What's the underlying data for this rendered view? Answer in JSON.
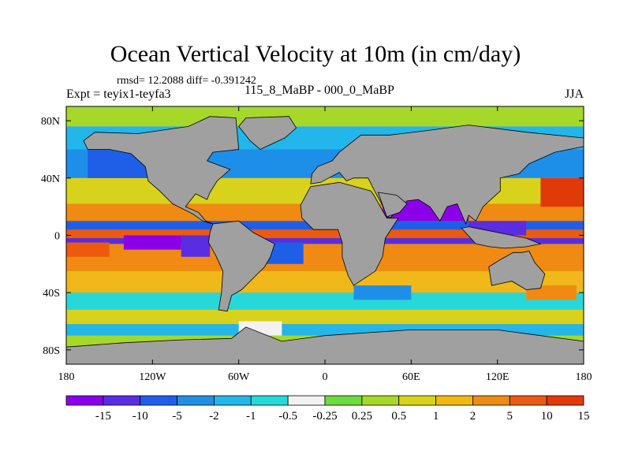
{
  "title": "Ocean Vertical Velocity at 10m (in cm/day)",
  "stats": "rmsd= 12.2088 diff= -0.391242",
  "expt": "Expt = teyix1-teyfa3",
  "subtitle": "115_8_MaBP - 000_0_MaBP",
  "season": "JJA",
  "chart_data": {
    "type": "heatmap",
    "title": "Ocean Vertical Velocity at 10m (in cm/day)",
    "x_range": [
      -180,
      180
    ],
    "y_range": [
      -90,
      90
    ],
    "x_ticks": [
      {
        "value": -180,
        "label": "180"
      },
      {
        "value": -120,
        "label": "120W"
      },
      {
        "value": -60,
        "label": "60W"
      },
      {
        "value": 0,
        "label": "0"
      },
      {
        "value": 60,
        "label": "60E"
      },
      {
        "value": 120,
        "label": "120E"
      },
      {
        "value": 180,
        "label": "180"
      }
    ],
    "y_ticks": [
      {
        "value": 80,
        "label": "80N"
      },
      {
        "value": 40,
        "label": "40N"
      },
      {
        "value": 0,
        "label": "0"
      },
      {
        "value": -40,
        "label": "40S"
      },
      {
        "value": -80,
        "label": "80S"
      }
    ],
    "colorbar": {
      "colors": [
        "#8a00e8",
        "#5a2de0",
        "#1f5fe8",
        "#1e8fe8",
        "#22b6ea",
        "#28d8d8",
        "#f2f2f2",
        "#6cdc3a",
        "#a6d82a",
        "#d8d21c",
        "#f0b818",
        "#f08a12",
        "#ec5a0e",
        "#e03a08"
      ],
      "labels": [
        "-15",
        "-10",
        "-5",
        "-2",
        "-1",
        "-0.5",
        "-0.25",
        "0.25",
        "0.5",
        "1",
        "2",
        "5",
        "10",
        "15"
      ],
      "land_color": "#a0a0a0"
    },
    "bands": [
      {
        "lat": [
          76,
          90
        ],
        "category": 8
      },
      {
        "lat": [
          60,
          76
        ],
        "category": 4
      },
      {
        "lat": [
          40,
          60
        ],
        "category": 3
      },
      {
        "lat": [
          22,
          40
        ],
        "category": 9
      },
      {
        "lat": [
          10,
          22
        ],
        "category": 11
      },
      {
        "lat": [
          4,
          10
        ],
        "category": 2
      },
      {
        "lat": [
          -2,
          4
        ],
        "category": 12
      },
      {
        "lat": [
          -6,
          -2
        ],
        "category": 1
      },
      {
        "lat": [
          -25,
          -6
        ],
        "category": 11
      },
      {
        "lat": [
          -40,
          -25
        ],
        "category": 10
      },
      {
        "lat": [
          -52,
          -40
        ],
        "category": 5
      },
      {
        "lat": [
          -62,
          -52
        ],
        "category": 9
      },
      {
        "lat": [
          -70,
          -62
        ],
        "category": 4
      },
      {
        "lat": [
          -90,
          -70
        ],
        "category": 8
      }
    ],
    "patches": [
      {
        "lon": [
          -165,
          -120
        ],
        "lat": [
          40,
          65
        ],
        "category": 2
      },
      {
        "lon": [
          -140,
          -100
        ],
        "lat": [
          -10,
          0
        ],
        "category": 0
      },
      {
        "lon": [
          -100,
          -80
        ],
        "lat": [
          -15,
          0
        ],
        "category": 1
      },
      {
        "lon": [
          -55,
          -15
        ],
        "lat": [
          -20,
          -5
        ],
        "category": 2
      },
      {
        "lon": [
          40,
          100
        ],
        "lat": [
          10,
          25
        ],
        "category": 0
      },
      {
        "lon": [
          100,
          140
        ],
        "lat": [
          0,
          10
        ],
        "category": 1
      },
      {
        "lon": [
          150,
          180
        ],
        "lat": [
          20,
          40
        ],
        "category": 13
      },
      {
        "lon": [
          -180,
          -150
        ],
        "lat": [
          -15,
          -5
        ],
        "category": 12
      },
      {
        "lon": [
          20,
          60
        ],
        "lat": [
          -45,
          -35
        ],
        "category": 3
      },
      {
        "lon": [
          -60,
          -30
        ],
        "lat": [
          -70,
          -60
        ],
        "category": 6
      },
      {
        "lon": [
          140,
          175
        ],
        "lat": [
          -45,
          -35
        ],
        "category": 11
      }
    ],
    "land": [
      {
        "name": "north-america",
        "points": [
          [
            -168,
            66
          ],
          [
            -160,
            72
          ],
          [
            -130,
            71
          ],
          [
            -95,
            76
          ],
          [
            -80,
            83
          ],
          [
            -62,
            82
          ],
          [
            -60,
            60
          ],
          [
            -78,
            58
          ],
          [
            -82,
            52
          ],
          [
            -66,
            46
          ],
          [
            -75,
            38
          ],
          [
            -80,
            30
          ],
          [
            -82,
            25
          ],
          [
            -90,
            29
          ],
          [
            -97,
            20
          ],
          [
            -88,
            16
          ],
          [
            -83,
            10
          ],
          [
            -78,
            8
          ],
          [
            -85,
            10
          ],
          [
            -92,
            15
          ],
          [
            -106,
            22
          ],
          [
            -115,
            31
          ],
          [
            -123,
            38
          ],
          [
            -125,
            48
          ],
          [
            -135,
            57
          ],
          [
            -150,
            60
          ],
          [
            -165,
            60
          ]
        ]
      },
      {
        "name": "greenland",
        "points": [
          [
            -55,
            82
          ],
          [
            -25,
            83
          ],
          [
            -20,
            75
          ],
          [
            -28,
            68
          ],
          [
            -45,
            60
          ],
          [
            -52,
            66
          ],
          [
            -60,
            76
          ]
        ]
      },
      {
        "name": "south-america",
        "points": [
          [
            -78,
            8
          ],
          [
            -60,
            10
          ],
          [
            -50,
            2
          ],
          [
            -35,
            -6
          ],
          [
            -38,
            -15
          ],
          [
            -42,
            -22
          ],
          [
            -48,
            -28
          ],
          [
            -58,
            -38
          ],
          [
            -65,
            -42
          ],
          [
            -68,
            -53
          ],
          [
            -74,
            -52
          ],
          [
            -72,
            -40
          ],
          [
            -71,
            -25
          ],
          [
            -76,
            -14
          ],
          [
            -81,
            -5
          ],
          [
            -80,
            2
          ]
        ]
      },
      {
        "name": "africa",
        "points": [
          [
            -17,
            21
          ],
          [
            -10,
            34
          ],
          [
            10,
            37
          ],
          [
            32,
            31
          ],
          [
            34,
            28
          ],
          [
            43,
            12
          ],
          [
            51,
            12
          ],
          [
            42,
            -2
          ],
          [
            40,
            -15
          ],
          [
            35,
            -25
          ],
          [
            20,
            -35
          ],
          [
            16,
            -28
          ],
          [
            12,
            -15
          ],
          [
            12,
            -5
          ],
          [
            9,
            4
          ],
          [
            -8,
            4
          ],
          [
            -16,
            12
          ]
        ]
      },
      {
        "name": "eurasia",
        "points": [
          [
            -10,
            36
          ],
          [
            -9,
            43
          ],
          [
            -5,
            48
          ],
          [
            5,
            52
          ],
          [
            10,
            58
          ],
          [
            25,
            70
          ],
          [
            45,
            70
          ],
          [
            70,
            73
          ],
          [
            100,
            77
          ],
          [
            140,
            72
          ],
          [
            180,
            68
          ],
          [
            180,
            62
          ],
          [
            160,
            58
          ],
          [
            142,
            50
          ],
          [
            135,
            43
          ],
          [
            122,
            40
          ],
          [
            122,
            31
          ],
          [
            110,
            20
          ],
          [
            105,
            10
          ],
          [
            100,
            14
          ],
          [
            98,
            8
          ],
          [
            92,
            22
          ],
          [
            85,
            20
          ],
          [
            80,
            10
          ],
          [
            73,
            20
          ],
          [
            65,
            25
          ],
          [
            57,
            24
          ],
          [
            45,
            12
          ],
          [
            35,
            30
          ],
          [
            30,
            40
          ],
          [
            20,
            40
          ],
          [
            15,
            38
          ],
          [
            10,
            44
          ],
          [
            -3,
            37
          ]
        ]
      },
      {
        "name": "arabia",
        "points": [
          [
            37,
            30
          ],
          [
            50,
            28
          ],
          [
            57,
            22
          ],
          [
            52,
            16
          ],
          [
            43,
            13
          ]
        ]
      },
      {
        "name": "australia",
        "points": [
          [
            114,
            -22
          ],
          [
            122,
            -17
          ],
          [
            131,
            -12
          ],
          [
            137,
            -12
          ],
          [
            142,
            -11
          ],
          [
            146,
            -19
          ],
          [
            153,
            -27
          ],
          [
            150,
            -37
          ],
          [
            140,
            -38
          ],
          [
            130,
            -32
          ],
          [
            116,
            -35
          ]
        ]
      },
      {
        "name": "indonesia",
        "points": [
          [
            95,
            5
          ],
          [
            105,
            -6
          ],
          [
            115,
            -8
          ],
          [
            125,
            -9
          ],
          [
            140,
            -8
          ],
          [
            150,
            -6
          ],
          [
            140,
            -2
          ],
          [
            120,
            2
          ],
          [
            110,
            4
          ],
          [
            100,
            6
          ]
        ]
      },
      {
        "name": "antarctica",
        "points": [
          [
            -180,
            -90
          ],
          [
            180,
            -90
          ],
          [
            180,
            -74
          ],
          [
            150,
            -70
          ],
          [
            120,
            -66
          ],
          [
            90,
            -66
          ],
          [
            60,
            -66
          ],
          [
            30,
            -68
          ],
          [
            0,
            -70
          ],
          [
            -30,
            -74
          ],
          [
            -55,
            -64
          ],
          [
            -65,
            -72
          ],
          [
            -100,
            -73
          ],
          [
            -140,
            -75
          ],
          [
            -180,
            -78
          ]
        ]
      }
    ]
  }
}
